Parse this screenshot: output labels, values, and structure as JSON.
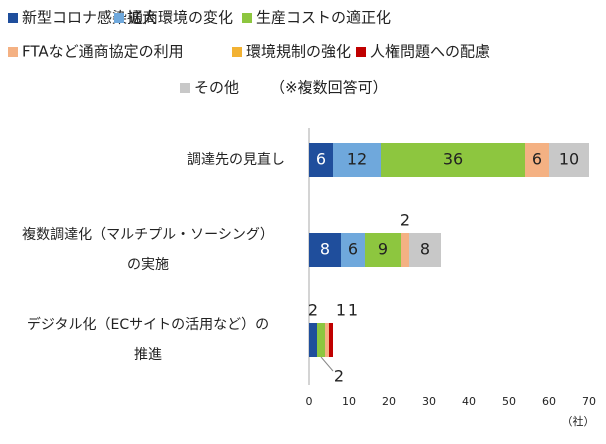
{
  "chart_data": {
    "type": "stacked-bar-horizontal",
    "note": "（※複数回答可）",
    "x_label": "（社）",
    "categories": [
      [
        "調達先の見直し"
      ],
      [
        "複数調達化（マルチプル・ソーシング）",
        "の実施"
      ],
      [
        "デジタル化（ECサイトの活用など）の",
        "推進"
      ]
    ],
    "series": [
      {
        "name": "新型コロナ感染拡大",
        "color": "#1f4e9c",
        "values": [
          6,
          8,
          2
        ]
      },
      {
        "name": "通商環境の変化",
        "color": "#6fa8dc",
        "values": [
          12,
          6,
          null
        ]
      },
      {
        "name": "生産コストの適正化",
        "color": "#8dc63f",
        "values": [
          36,
          9,
          2
        ]
      },
      {
        "name": "FTAなど通商協定の利用",
        "color": "#f4b183",
        "values": [
          6,
          2,
          1
        ]
      },
      {
        "name": "環境規制の強化",
        "color": "#f2b233",
        "values": [
          null,
          null,
          null
        ]
      },
      {
        "name": "人権問題への配慮",
        "color": "#c00000",
        "values": [
          null,
          null,
          1
        ]
      },
      {
        "name": "その他",
        "color": "#c8c8c8",
        "values": [
          10,
          8,
          null
        ]
      }
    ],
    "xlim": [
      0,
      70
    ],
    "xticks": [
      0,
      10,
      20,
      30,
      40,
      50,
      60,
      70
    ]
  }
}
